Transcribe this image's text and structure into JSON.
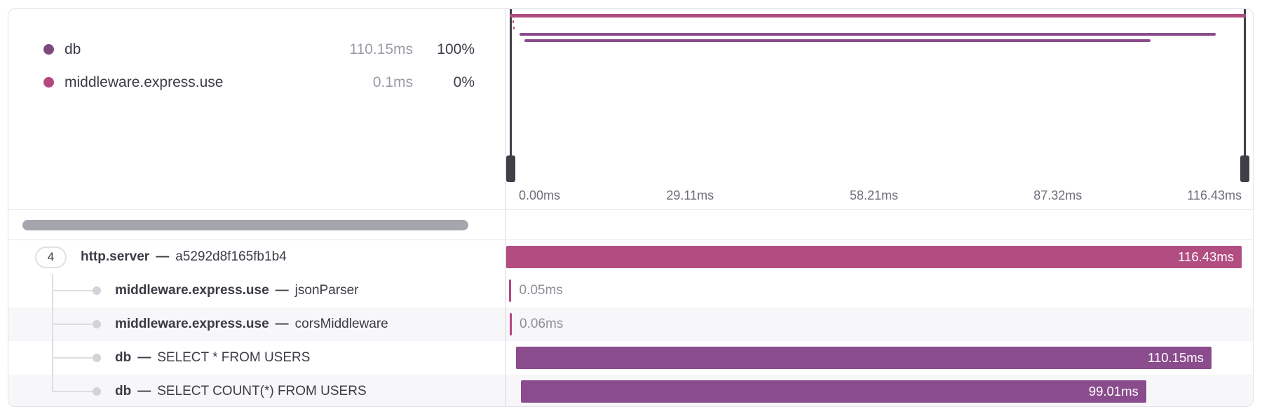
{
  "legend": {
    "items": [
      {
        "name": "db",
        "duration": "110.15ms",
        "percent": "100%",
        "color": "#7d4a7f"
      },
      {
        "name": "middleware.express.use",
        "duration": "0.1ms",
        "percent": "0%",
        "color": "#b3497e"
      }
    ]
  },
  "minimap": {
    "axis_ticks": [
      "0.00ms",
      "29.11ms",
      "58.21ms",
      "87.32ms",
      "116.43ms"
    ]
  },
  "waterfall": {
    "total_ms": 116.43,
    "separator": "—",
    "rows": [
      {
        "badge": "4",
        "name": "http.server",
        "detail": "a5292d8f165fb1b4",
        "start_ms": 0,
        "duration_ms": 116.43,
        "duration_label": "116.43ms",
        "color": "#b14d80",
        "label_inside": true
      },
      {
        "name": "middleware.express.use",
        "detail": "jsonParser",
        "start_ms": 0.45,
        "duration_ms": 0.05,
        "duration_label": "0.05ms",
        "color": "#b3497e",
        "label_inside": false
      },
      {
        "name": "middleware.express.use",
        "detail": "corsMiddleware",
        "start_ms": 0.5,
        "duration_ms": 0.06,
        "duration_label": "0.06ms",
        "color": "#b3497e",
        "label_inside": false
      },
      {
        "name": "db",
        "detail": "SELECT * FROM USERS",
        "start_ms": 1.5,
        "duration_ms": 110.15,
        "duration_label": "110.15ms",
        "color": "#8a4c8d",
        "label_inside": true
      },
      {
        "name": "db",
        "detail": "SELECT COUNT(*) FROM USERS",
        "start_ms": 2.3,
        "duration_ms": 99.01,
        "duration_label": "99.01ms",
        "color": "#8a4c8d",
        "label_inside": true
      }
    ]
  }
}
